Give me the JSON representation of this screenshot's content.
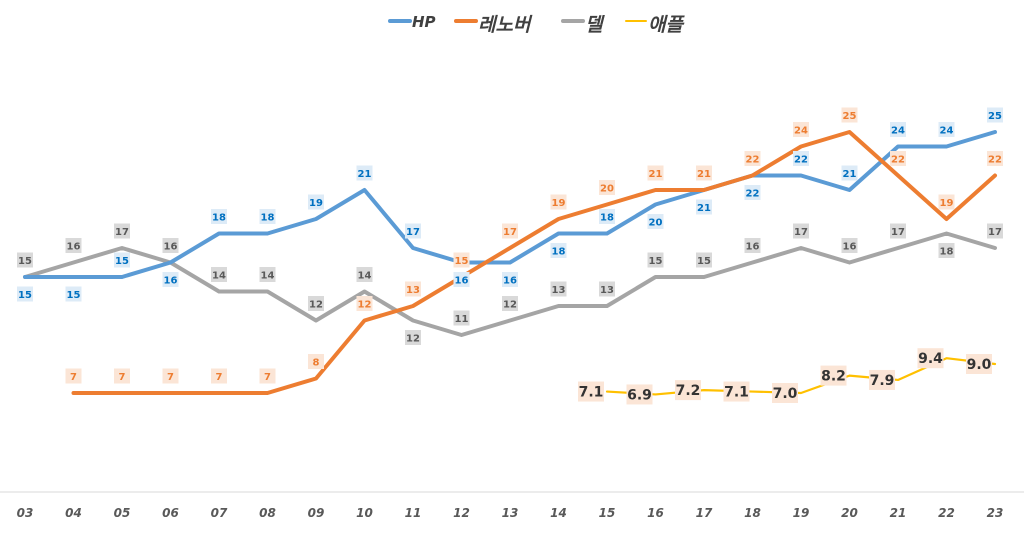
{
  "chart_data": {
    "type": "line",
    "title": "",
    "xlabel": "",
    "ylabel": "",
    "categories": [
      "03",
      "04",
      "05",
      "06",
      "07",
      "08",
      "09",
      "10",
      "11",
      "12",
      "13",
      "14",
      "15",
      "16",
      "17",
      "18",
      "19",
      "20",
      "21",
      "22",
      "23"
    ],
    "ylim": [
      0,
      34
    ],
    "grid": false,
    "legend_position": "top",
    "series": [
      {
        "name": "HP",
        "color": "#5B9BD5",
        "label_color": "#0070C0",
        "label_bg": "#DDEBF7",
        "values": [
          15,
          15,
          15,
          16,
          18,
          18,
          19,
          21,
          17,
          16,
          16,
          18,
          18,
          20,
          21,
          22,
          22,
          21,
          24,
          24,
          25
        ]
      },
      {
        "name": "레노버",
        "color": "#ED7D31",
        "label_color": "#ED7D31",
        "label_bg": "#FBE5D6",
        "values": [
          null,
          7,
          7,
          7,
          7,
          7,
          8,
          12,
          13,
          15,
          17,
          19,
          20,
          21,
          21,
          22,
          24,
          25,
          22,
          19,
          22
        ]
      },
      {
        "name": "델",
        "color": "#A5A5A5",
        "label_color": "#595959",
        "label_bg": "#D9D9D9",
        "values": [
          15,
          16,
          17,
          16,
          14,
          14,
          12,
          14,
          12,
          11,
          12,
          13,
          13,
          15,
          15,
          16,
          17,
          16,
          17,
          18,
          17
        ]
      },
      {
        "name": "애플",
        "color": "#FFC000",
        "label_color": "#333333",
        "label_bg": "#FBE5D6",
        "values": [
          null,
          null,
          null,
          null,
          null,
          null,
          null,
          null,
          null,
          null,
          null,
          null,
          7.1,
          6.9,
          7.2,
          7.1,
          7.0,
          8.2,
          7.9,
          9.4,
          9.0
        ],
        "labels": [
          null,
          null,
          null,
          null,
          null,
          null,
          null,
          null,
          null,
          null,
          null,
          null,
          "7.1",
          "6.9",
          "7.2",
          "7.1",
          "7.0",
          "8.2",
          "7.9",
          "9.4",
          "9.0"
        ]
      }
    ]
  }
}
